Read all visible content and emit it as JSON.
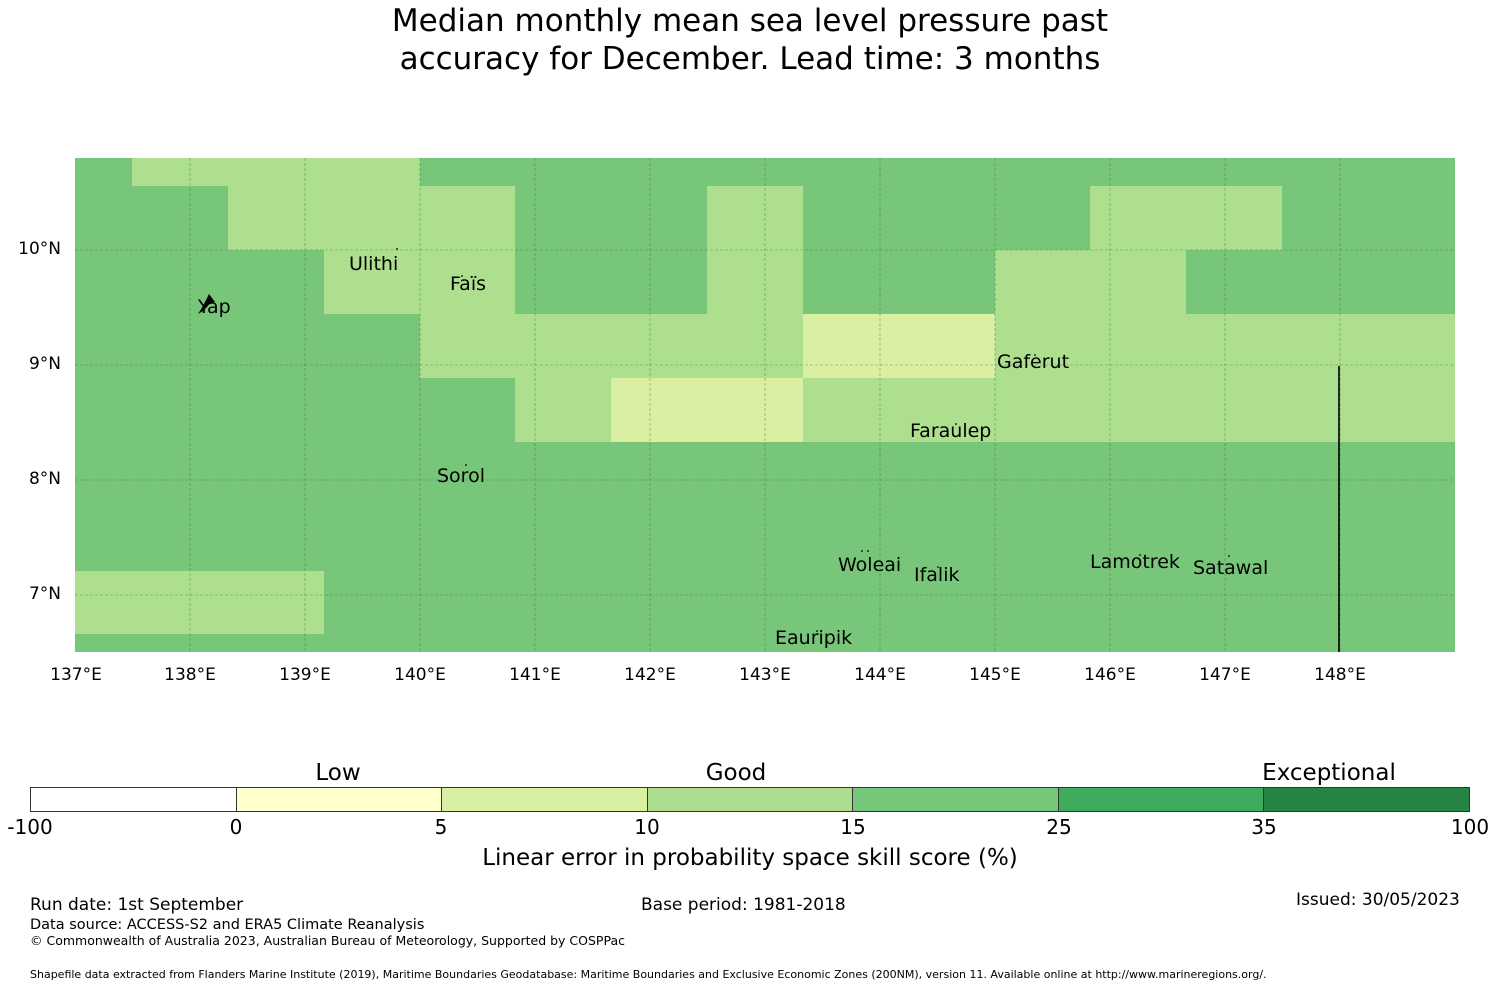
{
  "title": {
    "line1": "Median monthly mean sea level pressure past",
    "line2": "accuracy for December. Lead time: 3 months"
  },
  "map": {
    "latitude_labels": [
      "10°N",
      "9°N",
      "8°N",
      "7°N"
    ],
    "longitude_labels": [
      "137°E",
      "138°E",
      "139°E",
      "140°E",
      "141°E",
      "142°E",
      "143°E",
      "144°E",
      "145°E",
      "146°E",
      "147°E",
      "148°E"
    ],
    "places": [
      "Ulithi",
      "Yap",
      "Faïs",
      "Gaferut",
      "Faraulep",
      "Sorol",
      "Woleai",
      "Ifalik",
      "Lamotrek",
      "Satawal",
      "Eauripik"
    ],
    "colors": {
      "good_high": "#78c67a",
      "good_low": "#addf8f",
      "low_high": "#daefa2",
      "grid": "#2a6a2e",
      "boundary": "#000000"
    }
  },
  "colorbar": {
    "categories": [
      "Low",
      "Good",
      "Exceptional"
    ],
    "ticks": [
      "-100",
      "0",
      "5",
      "10",
      "15",
      "25",
      "35",
      "100"
    ],
    "colors": [
      "#ffffff",
      "#ffffcc",
      "#d9f0a3",
      "#addd8e",
      "#78c679",
      "#41ab5d",
      "#238443"
    ],
    "label": "Linear error in probability space skill score (%)"
  },
  "footer": {
    "run_date": "Run date: 1st September",
    "base_period": "Base period: 1981-2018",
    "issued": "Issued: 30/05/2023",
    "data_source": "Data source: ACCESS-S2 and ERA5 Climate Reanalysis",
    "copyright": "© Commonwealth of Australia 2023, Australian Bureau of Meteorology, Supported by COSPPac",
    "shapefile": "Shapefile data extracted from Flanders Marine Institute (2019), Maritime Boundaries Geodatabase: Maritime Boundaries and Exclusive Economic Zones (200NM), version 11. Available online at http://www.marineregions.org/."
  }
}
